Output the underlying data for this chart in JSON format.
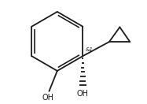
{
  "bg_color": "#ffffff",
  "line_color": "#1a1a1a",
  "line_width": 1.3,
  "font_size_label": 7.0,
  "font_size_stereo": 5.0
}
